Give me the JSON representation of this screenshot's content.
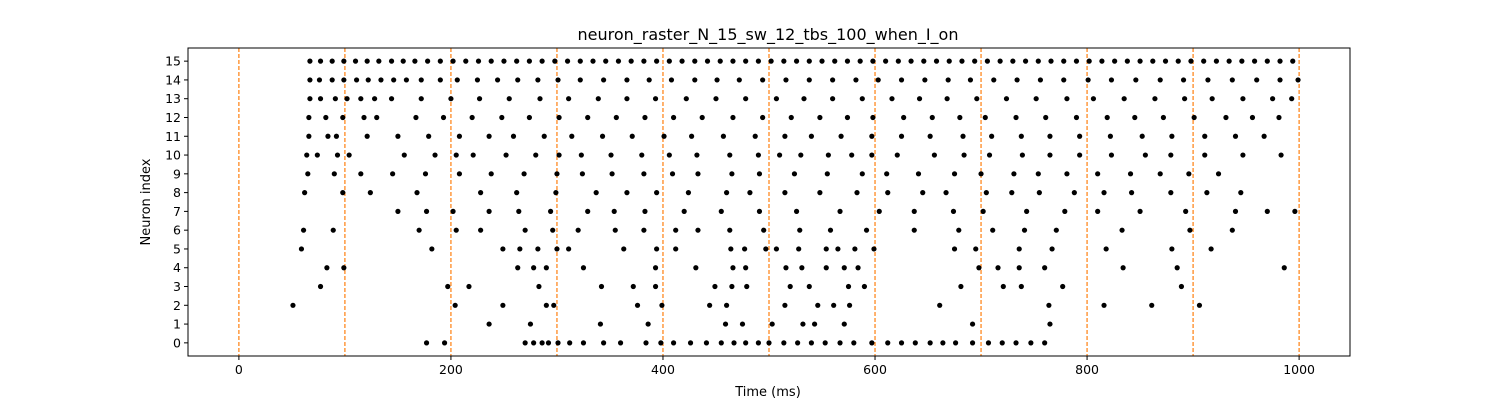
{
  "chart_data": {
    "type": "scatter",
    "title": "neuron_raster_N_15_sw_12_tbs_100_when_I_on",
    "xlabel": "Time (ms)",
    "ylabel": "Neuron index",
    "xlim": [
      -48,
      1048
    ],
    "ylim": [
      -0.7,
      15.7
    ],
    "x_ticks": [
      0,
      200,
      400,
      600,
      800,
      1000
    ],
    "y_ticks": [
      0,
      1,
      2,
      3,
      4,
      5,
      6,
      7,
      8,
      9,
      10,
      11,
      12,
      13,
      14,
      15
    ],
    "grid": false,
    "point_color": "#000000",
    "marker_lines": {
      "x": [
        0,
        100,
        200,
        300,
        400,
        500,
        600,
        700,
        800,
        900,
        1000
      ],
      "color": "#ff7f0e",
      "style": "dashed"
    },
    "series": [
      {
        "neuron": 0,
        "x": [
          177,
          194,
          270,
          278,
          286,
          292,
          301,
          312,
          325,
          344,
          360,
          384,
          398,
          410,
          426,
          441,
          455,
          467,
          478,
          490,
          500,
          514,
          527,
          540,
          553,
          567,
          580,
          597,
          612,
          625,
          638,
          652,
          664,
          676,
          692,
          707,
          720,
          733,
          747,
          760
        ]
      },
      {
        "neuron": 1,
        "x": [
          236,
          275,
          341,
          386,
          459,
          475,
          503,
          532,
          543,
          571,
          692,
          765
        ]
      },
      {
        "neuron": 2,
        "x": [
          51,
          204,
          249,
          290,
          297,
          376,
          399,
          444,
          460,
          515,
          546,
          561,
          576,
          661,
          764,
          816,
          861,
          906
        ]
      },
      {
        "neuron": 3,
        "x": [
          77,
          197,
          217,
          283,
          342,
          372,
          393,
          449,
          465,
          479,
          520,
          538,
          575,
          590,
          681,
          721,
          738,
          777,
          889
        ]
      },
      {
        "neuron": 4,
        "x": [
          83,
          99,
          263,
          278,
          290,
          325,
          393,
          431,
          466,
          478,
          516,
          531,
          554,
          571,
          584,
          698,
          716,
          736,
          760,
          834,
          885,
          986
        ]
      },
      {
        "neuron": 5,
        "x": [
          59,
          182,
          249,
          265,
          282,
          300,
          311,
          363,
          394,
          412,
          464,
          477,
          497,
          507,
          528,
          554,
          565,
          581,
          599,
          675,
          695,
          736,
          767,
          818,
          880,
          917
        ]
      },
      {
        "neuron": 6,
        "x": [
          61,
          89,
          170,
          205,
          228,
          270,
          296,
          320,
          355,
          382,
          412,
          433,
          463,
          495,
          529,
          558,
          592,
          637,
          679,
          711,
          741,
          771,
          833,
          897,
          937
        ]
      },
      {
        "neuron": 7,
        "x": [
          150,
          177,
          202,
          236,
          264,
          294,
          329,
          354,
          383,
          420,
          455,
          491,
          526,
          567,
          604,
          637,
          674,
          702,
          743,
          779,
          810,
          850,
          893,
          940,
          970,
          996
        ]
      },
      {
        "neuron": 8,
        "x": [
          62,
          98,
          124,
          168,
          228,
          262,
          299,
          337,
          366,
          394,
          424,
          460,
          482,
          515,
          548,
          583,
          612,
          645,
          667,
          705,
          729,
          755,
          788,
          816,
          842,
          879,
          913,
          945
        ]
      },
      {
        "neuron": 9,
        "x": [
          65,
          90,
          115,
          145,
          176,
          208,
          238,
          269,
          300,
          324,
          352,
          382,
          409,
          433,
          465,
          491,
          524,
          555,
          588,
          611,
          641,
          675,
          700,
          731,
          754,
          781,
          810,
          841,
          869,
          896,
          924
        ]
      },
      {
        "neuron": 10,
        "x": [
          64,
          74,
          93,
          104,
          156,
          185,
          205,
          221,
          252,
          280,
          302,
          323,
          351,
          380,
          406,
          432,
          463,
          490,
          510,
          530,
          556,
          578,
          597,
          621,
          656,
          684,
          708,
          739,
          765,
          793,
          823,
          855,
          879,
          911,
          947,
          983
        ]
      },
      {
        "neuron": 11,
        "x": [
          66,
          84,
          92,
          121,
          150,
          179,
          208,
          236,
          259,
          288,
          314,
          343,
          371,
          401,
          427,
          457,
          487,
          515,
          540,
          568,
          597,
          625,
          652,
          683,
          710,
          738,
          765,
          793,
          822,
          852,
          880,
          911,
          940,
          967
        ]
      },
      {
        "neuron": 12,
        "x": [
          66,
          82,
          98,
          118,
          130,
          167,
          193,
          220,
          248,
          274,
          302,
          329,
          356,
          383,
          410,
          437,
          466,
          494,
          521,
          548,
          574,
          598,
          627,
          654,
          680,
          704,
          733,
          761,
          790,
          819,
          845,
          872,
          901,
          931,
          956,
          981
        ]
      },
      {
        "neuron": 13,
        "x": [
          67,
          77,
          91,
          102,
          115,
          128,
          144,
          172,
          200,
          227,
          255,
          284,
          311,
          339,
          366,
          393,
          422,
          450,
          478,
          507,
          533,
          560,
          588,
          616,
          642,
          668,
          696,
          724,
          752,
          781,
          806,
          835,
          864,
          892,
          918,
          947,
          975,
          993
        ]
      },
      {
        "neuron": 14,
        "x": [
          67,
          76,
          88,
          99,
          111,
          122,
          134,
          146,
          158,
          172,
          190,
          206,
          225,
          244,
          263,
          282,
          301,
          322,
          344,
          366,
          387,
          408,
          430,
          451,
          472,
          494,
          516,
          538,
          560,
          582,
          603,
          625,
          647,
          669,
          690,
          712,
          734,
          756,
          778,
          801,
          823,
          846,
          869,
          891,
          914,
          937,
          960,
          982,
          999
        ]
      },
      {
        "neuron": 15,
        "x": [
          67,
          77,
          88,
          99,
          110,
          121,
          132,
          144,
          155,
          166,
          178,
          190,
          202,
          214,
          226,
          238,
          250,
          262,
          274,
          286,
          298,
          310,
          322,
          334,
          346,
          358,
          370,
          382,
          394,
          406,
          418,
          430,
          442,
          454,
          466,
          478,
          490,
          502,
          514,
          526,
          538,
          550,
          562,
          574,
          586,
          598,
          610,
          622,
          634,
          646,
          658,
          670,
          682,
          694,
          706,
          718,
          730,
          742,
          754,
          766,
          778,
          790,
          802,
          814,
          826,
          838,
          850,
          862,
          874,
          886,
          898,
          910,
          922,
          934,
          946,
          958,
          970,
          982,
          994
        ]
      }
    ]
  }
}
